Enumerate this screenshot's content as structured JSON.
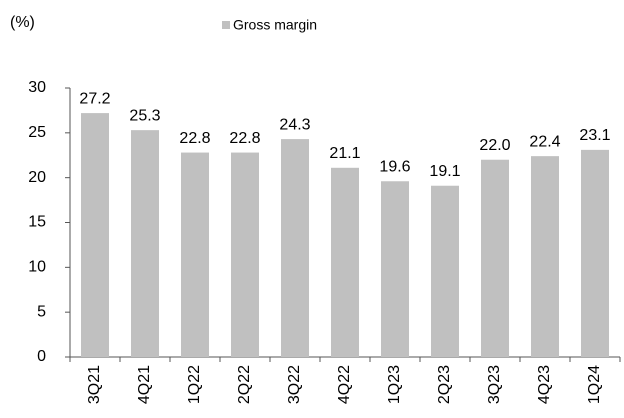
{
  "chart_data": {
    "type": "bar",
    "ylabel": "(%)",
    "categories": [
      "3Q21",
      "4Q21",
      "1Q22",
      "2Q22",
      "3Q22",
      "4Q22",
      "1Q23",
      "2Q23",
      "3Q23",
      "4Q23",
      "1Q24"
    ],
    "series": [
      {
        "name": "Gross margin",
        "color": "#c0c0c0",
        "values": [
          27.2,
          25.3,
          22.8,
          22.8,
          24.3,
          21.1,
          19.6,
          19.1,
          22.0,
          22.4,
          23.1
        ],
        "value_labels": [
          "27.2",
          "25.3",
          "22.8",
          "22.8",
          "24.3",
          "21.1",
          "19.6",
          "19.1",
          "22.0",
          "22.4",
          "23.1"
        ]
      }
    ],
    "ylim": [
      0,
      30
    ],
    "yticks": [
      0,
      5,
      10,
      15,
      20,
      25,
      30
    ],
    "grid": false,
    "legend": "top"
  }
}
